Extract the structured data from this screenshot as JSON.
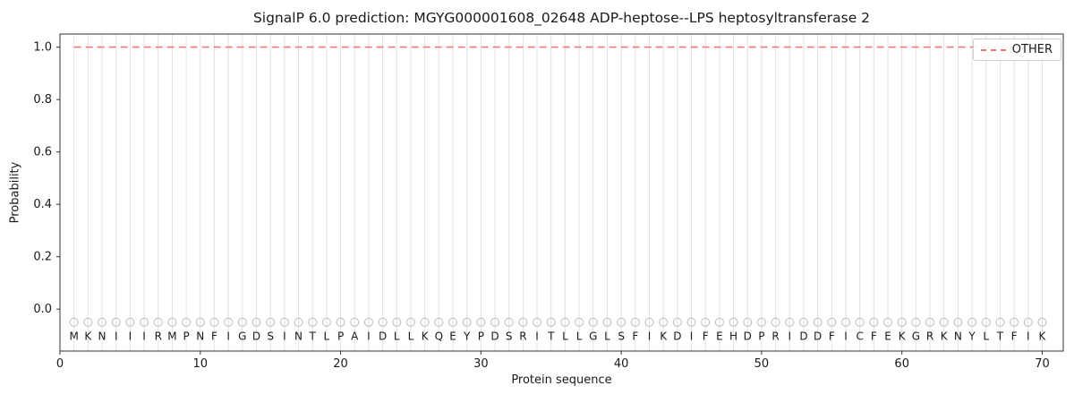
{
  "chart_data": {
    "type": "line",
    "title": "SignalP 6.0 prediction: MGYG000001608_02648 ADP-heptose--LPS heptosyltransferase 2",
    "xlabel": "Protein sequence",
    "ylabel": "Probability",
    "xlim": [
      0,
      71.5
    ],
    "ylim": [
      -0.16,
      1.05
    ],
    "xticks": [
      0,
      10,
      20,
      30,
      40,
      50,
      60,
      70
    ],
    "yticks": [
      0.0,
      0.2,
      0.4,
      0.6,
      0.8,
      1.0
    ],
    "grid": "vertical line at every residue position",
    "legend_position": "upper right",
    "sequence": "MKNIIIRMPNFIGDSINTLPAIDLLKQEYPDSRITLLGLSFIKDIFEHDPRIDDFICFEKGRKNYLTFIK",
    "sequence_length": 70,
    "marker_y": -0.05,
    "letter_y": -0.1,
    "series": [
      {
        "name": "OTHER",
        "color": "#ee7374",
        "line_style": "dashed",
        "x_start": 1,
        "values": [
          1,
          1,
          1,
          1,
          1,
          1,
          1,
          1,
          1,
          1,
          1,
          1,
          1,
          1,
          1,
          1,
          1,
          1,
          1,
          1,
          1,
          1,
          1,
          1,
          1,
          1,
          1,
          1,
          1,
          1,
          1,
          1,
          1,
          1,
          1,
          1,
          1,
          1,
          1,
          1,
          1,
          1,
          1,
          1,
          1,
          1,
          1,
          1,
          1,
          1,
          1,
          1,
          1,
          1,
          1,
          1,
          1,
          1,
          1,
          1,
          1,
          1,
          1,
          1,
          1,
          1,
          1,
          1,
          1,
          1
        ]
      }
    ],
    "colors": {
      "gridline": "#e2e2e2",
      "marker_stroke": "#c2c2c2",
      "letter": "#1a1a1a",
      "spine": "#333333",
      "tick": "#333333",
      "tick_label": "#1a1a1a",
      "background": "#ffffff"
    }
  }
}
